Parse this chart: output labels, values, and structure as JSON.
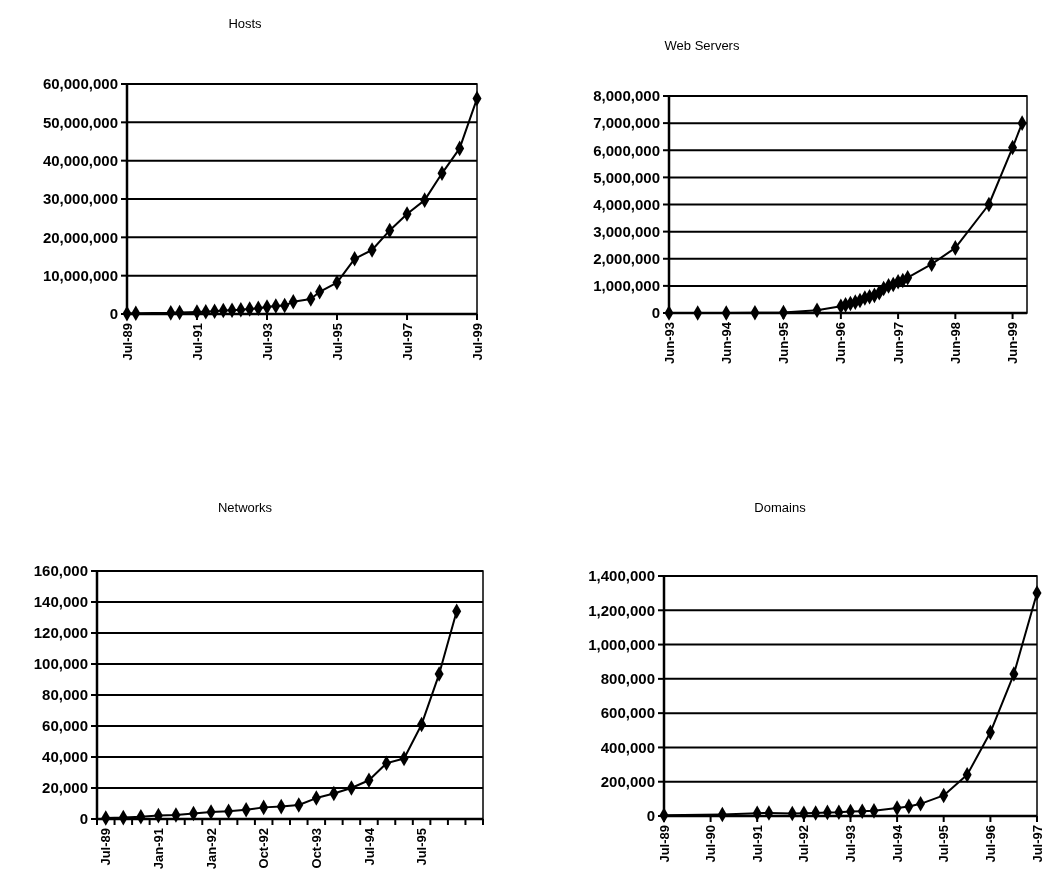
{
  "chart_data": [
    {
      "type": "line",
      "title": "Hosts",
      "color": "#000000",
      "marker": "diamond",
      "grid": "y",
      "x": [
        "1989-07",
        "1989-10",
        "1990-10",
        "1991-01",
        "1991-07",
        "1991-10",
        "1992-01",
        "1992-04",
        "1992-07",
        "1992-10",
        "1993-01",
        "1993-04",
        "1993-07",
        "1993-10",
        "1994-01",
        "1994-04",
        "1994-10",
        "1995-01",
        "1995-07",
        "1996-01",
        "1996-07",
        "1997-01",
        "1997-07",
        "1998-01",
        "1998-07",
        "1999-01",
        "1999-07"
      ],
      "values": [
        100000,
        200000,
        300000,
        400000,
        500000,
        600000,
        700000,
        900000,
        1000000,
        1100000,
        1300000,
        1500000,
        1800000,
        2100000,
        2200000,
        3200000,
        3900000,
        5800000,
        8200000,
        14400000,
        16700000,
        21800000,
        26100000,
        29700000,
        36700000,
        43200000,
        56200000
      ],
      "xlim": [
        "1989-07",
        "1999-07"
      ],
      "xticks": [
        {
          "value": "1989-07",
          "label": "Jul-89"
        },
        {
          "value": "1991-07",
          "label": "Jul-91"
        },
        {
          "value": "1993-07",
          "label": "Jul-93"
        },
        {
          "value": "1995-07",
          "label": "Jul-95"
        },
        {
          "value": "1997-07",
          "label": "Jul-97"
        },
        {
          "value": "1999-07",
          "label": "Jul-99"
        }
      ],
      "ylim": [
        0,
        60000000
      ],
      "yticks": [
        {
          "value": 0,
          "label": "0"
        },
        {
          "value": 10000000,
          "label": "10,000,000"
        },
        {
          "value": 20000000,
          "label": "20,000,000"
        },
        {
          "value": 30000000,
          "label": "30,000,000"
        },
        {
          "value": 40000000,
          "label": "40,000,000"
        },
        {
          "value": 50000000,
          "label": "50,000,000"
        },
        {
          "value": 60000000,
          "label": "60,000,000"
        }
      ]
    },
    {
      "type": "line",
      "title": "Web Servers",
      "color": "#000000",
      "marker": "diamond",
      "grid": "y",
      "x": [
        "1993-06",
        "1993-12",
        "1994-06",
        "1994-12",
        "1995-06",
        "1996-01",
        "1996-06",
        "1996-07",
        "1996-08",
        "1996-09",
        "1996-10",
        "1996-11",
        "1996-12",
        "1997-01",
        "1997-02",
        "1997-03",
        "1997-04",
        "1997-05",
        "1997-06",
        "1997-07",
        "1997-08",
        "1998-01",
        "1998-06",
        "1999-01",
        "1999-06",
        "1999-08"
      ],
      "values": [
        0,
        0,
        0,
        10000,
        20000,
        100000,
        250000,
        300000,
        350000,
        400000,
        460000,
        550000,
        600000,
        650000,
        750000,
        900000,
        1000000,
        1050000,
        1150000,
        1200000,
        1300000,
        1800000,
        2400000,
        4000000,
        6100000,
        7000000
      ],
      "xlim": [
        "1993-06",
        "1999-09"
      ],
      "xticks": [
        {
          "value": "1993-06",
          "label": "Jun-93"
        },
        {
          "value": "1994-06",
          "label": "Jun-94"
        },
        {
          "value": "1995-06",
          "label": "Jun-95"
        },
        {
          "value": "1996-06",
          "label": "Jun-96"
        },
        {
          "value": "1997-06",
          "label": "Jun-97"
        },
        {
          "value": "1998-06",
          "label": "Jun-98"
        },
        {
          "value": "1999-06",
          "label": "Jun-99"
        }
      ],
      "ylim": [
        0,
        8000000
      ],
      "yticks": [
        {
          "value": 0,
          "label": "0"
        },
        {
          "value": 1000000,
          "label": "1,000,000"
        },
        {
          "value": 2000000,
          "label": "2,000,000"
        },
        {
          "value": 3000000,
          "label": "3,000,000"
        },
        {
          "value": 4000000,
          "label": "4,000,000"
        },
        {
          "value": 5000000,
          "label": "5,000,000"
        },
        {
          "value": 6000000,
          "label": "6,000,000"
        },
        {
          "value": 7000000,
          "label": "7,000,000"
        },
        {
          "value": 8000000,
          "label": "8,000,000"
        }
      ]
    },
    {
      "type": "line",
      "title": "Networks",
      "color": "#000000",
      "marker": "diamond",
      "grid": "y",
      "categories": [
        "Jul-89",
        null,
        null,
        "Jan-91",
        null,
        null,
        "Jan-92",
        null,
        null,
        "Oct-92",
        null,
        null,
        "Oct-93",
        null,
        null,
        "Jul-94",
        null,
        null,
        "Jul-95",
        null,
        null,
        null
      ],
      "values": [
        650,
        900,
        1500,
        2200,
        2600,
        3600,
        4500,
        5000,
        6000,
        7500,
        8000,
        9000,
        13500,
        16500,
        20000,
        25000,
        36000,
        39000,
        61000,
        93500,
        134000,
        null
      ],
      "ylim": [
        0,
        160000
      ],
      "yticks": [
        {
          "value": 0,
          "label": "0"
        },
        {
          "value": 20000,
          "label": "20,000"
        },
        {
          "value": 40000,
          "label": "40,000"
        },
        {
          "value": 60000,
          "label": "60,000"
        },
        {
          "value": 80000,
          "label": "80,000"
        },
        {
          "value": 100000,
          "label": "100,000"
        },
        {
          "value": 120000,
          "label": "120,000"
        },
        {
          "value": 140000,
          "label": "140,000"
        },
        {
          "value": 160000,
          "label": "160,000"
        }
      ]
    },
    {
      "type": "line",
      "title": "Domains",
      "color": "#000000",
      "marker": "diamond",
      "grid": "y",
      "x": [
        "1989-07",
        "1990-10",
        "1991-07",
        "1991-10",
        "1992-04",
        "1992-07",
        "1992-10",
        "1993-01",
        "1993-04",
        "1993-07",
        "1993-10",
        "1994-01",
        "1994-07",
        "1994-10",
        "1995-01",
        "1995-07",
        "1996-01",
        "1996-07",
        "1997-01",
        "1997-07"
      ],
      "values": [
        4000,
        9000,
        16000,
        18000,
        15000,
        16000,
        18000,
        21000,
        22000,
        26000,
        28000,
        30000,
        46000,
        56000,
        71000,
        120000,
        240000,
        488000,
        828000,
        1301000
      ],
      "xlim": [
        "1989-07",
        "1997-07"
      ],
      "xticks": [
        {
          "value": "1989-07",
          "label": "Jul-89"
        },
        {
          "value": "1990-07",
          "label": "Jul-90"
        },
        {
          "value": "1991-07",
          "label": "Jul-91"
        },
        {
          "value": "1992-07",
          "label": "Jul-92"
        },
        {
          "value": "1993-07",
          "label": "Jul-93"
        },
        {
          "value": "1994-07",
          "label": "Jul-94"
        },
        {
          "value": "1995-07",
          "label": "Jul-95"
        },
        {
          "value": "1996-07",
          "label": "Jul-96"
        },
        {
          "value": "1997-07",
          "label": "Jul-97"
        }
      ],
      "ylim": [
        0,
        1400000
      ],
      "yticks": [
        {
          "value": 0,
          "label": "0"
        },
        {
          "value": 200000,
          "label": "200,000"
        },
        {
          "value": 400000,
          "label": "400,000"
        },
        {
          "value": 600000,
          "label": "600,000"
        },
        {
          "value": 800000,
          "label": "800,000"
        },
        {
          "value": 1000000,
          "label": "1,000,000"
        },
        {
          "value": 1200000,
          "label": "1,200,000"
        },
        {
          "value": 1400000,
          "label": "1,400,000"
        }
      ]
    }
  ]
}
